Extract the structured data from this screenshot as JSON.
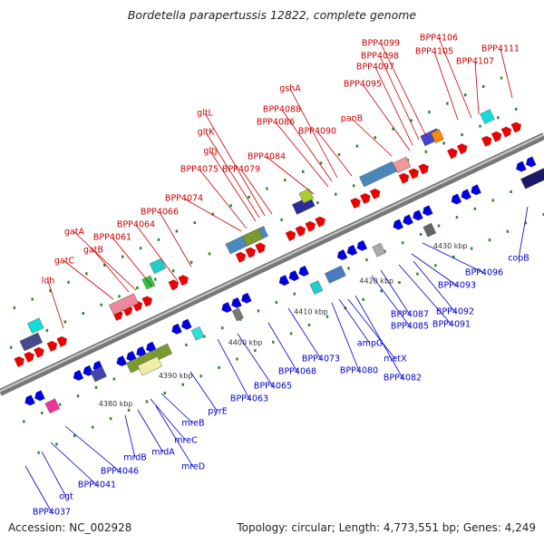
{
  "title": "Bordetella parapertussis 12822, complete genome",
  "footer": {
    "accession": "Accession: NC_002928",
    "topology": "Topology: circular; Length: 4,773,551 bp; Genes: 4,249"
  },
  "colors": {
    "forward_label": "#cc0000",
    "reverse_label": "#0000cc",
    "forward_arrow": "#ee0000",
    "reverse_arrow": "#0000dd",
    "backbone": "#8f8f8f",
    "tick": "#2a8a2a"
  },
  "ticks": [
    "4380 kbp",
    "4390 kbp",
    "4400 kbp",
    "4410 kbp",
    "4420 kbp",
    "4430 kbp"
  ],
  "forward_labels": [
    "BPP4099",
    "BPP4106",
    "BPP4098",
    "BPP4105",
    "BPP4111",
    "BPP4097",
    "BPP4107",
    "BPP4095",
    "gshA",
    "panB",
    "BPP4088",
    "BPP4086",
    "BPP4090",
    "gltL",
    "gltK",
    "BPP4084",
    "gltJ",
    "BPP4075",
    "BPP4079",
    "BPP4074",
    "BPP4066",
    "BPP4064",
    "gatA",
    "BPP4061",
    "gatB",
    "gatC",
    "ldh"
  ],
  "reverse_labels": [
    "copB",
    "BPP4096",
    "BPP4093",
    "BPP4092",
    "BPP4087",
    "BPP4091",
    "BPP4085",
    "BPP4073",
    "ampG",
    "metX",
    "BPP4080",
    "BPP4082",
    "BPP4068",
    "BPP4065",
    "BPP4063",
    "pyrE",
    "mreB",
    "mreC",
    "mrdB",
    "mrdA",
    "mreD",
    "BPP4046",
    "BPP4041",
    "ogt",
    "BPP4037"
  ]
}
